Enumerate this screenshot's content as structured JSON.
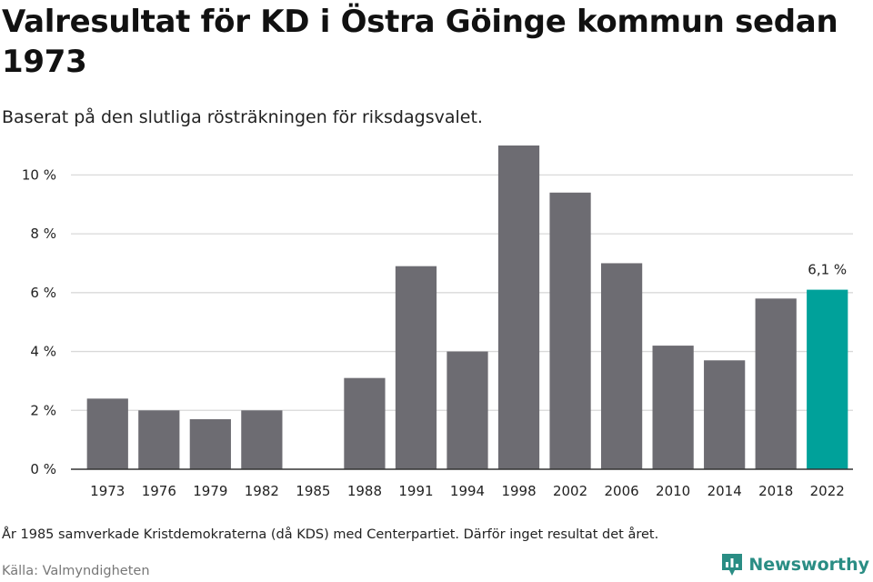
{
  "header": {
    "title": "Valresultat för KD i Östra Göinge kommun sedan 1973",
    "subtitle": "Baserat på den slutliga rösträkningen för riksdagsvalet."
  },
  "footer": {
    "note": "År 1985 samverkade Kristdemokraterna (då KDS) med Centerpartiet. Därför inget resultat det året.",
    "source": "Källa: Valmyndigheten",
    "brand": "Newsworthy"
  },
  "colors": {
    "bar": "#6d6c72",
    "highlight": "#00a19a",
    "grid": "#d9d9d9",
    "axis": "#333333"
  },
  "chart_data": {
    "type": "bar",
    "categories": [
      "1973",
      "1976",
      "1979",
      "1982",
      "1985",
      "1988",
      "1991",
      "1994",
      "1998",
      "2002",
      "2006",
      "2010",
      "2014",
      "2018",
      "2022"
    ],
    "values": [
      2.4,
      2.0,
      1.7,
      2.0,
      null,
      3.1,
      6.9,
      4.0,
      11.0,
      9.4,
      7.0,
      4.2,
      3.7,
      5.8,
      6.1
    ],
    "highlight_category": "2022",
    "data_labels": [
      {
        "category": "2022",
        "text": "6,1 %"
      }
    ],
    "ylim": [
      0,
      11
    ],
    "yticks": [
      0,
      2,
      4,
      6,
      8,
      10
    ],
    "ytick_labels": [
      "0 %",
      "2 %",
      "4 %",
      "6 %",
      "8 %",
      "10 %"
    ],
    "grid": true,
    "xlabel": "",
    "ylabel": ""
  }
}
